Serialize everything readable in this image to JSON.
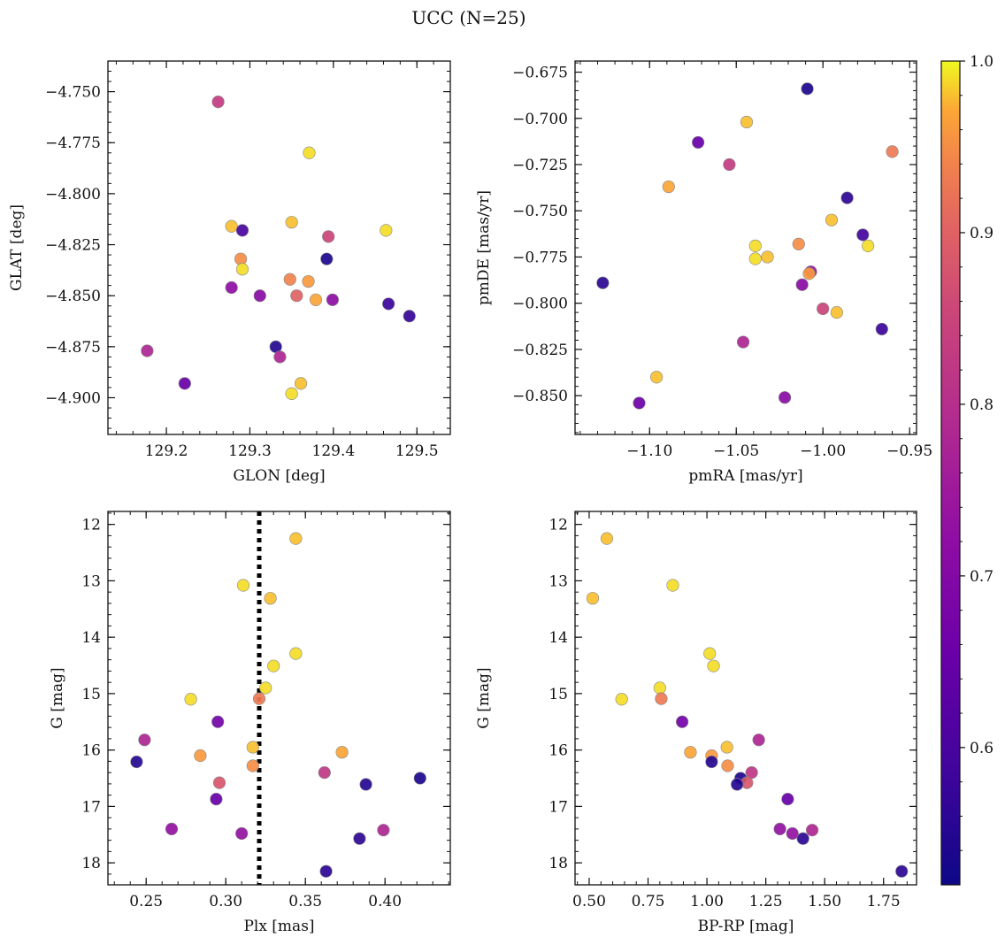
{
  "figure": {
    "title": "UCC (N=25)"
  },
  "colorbar": {
    "min": 0.52,
    "max": 1.0,
    "ticks": [
      0.6,
      0.7,
      0.8,
      0.9,
      1.0
    ],
    "tick_labels": [
      "0.6",
      "0.7",
      "0.8",
      "0.9",
      "1.0"
    ],
    "colormap": "plasma"
  },
  "chart_data": [
    {
      "type": "scatter",
      "xlabel": "GLON [deg]",
      "ylabel": "GLAT [deg]",
      "xlim": [
        129.13,
        129.54
      ],
      "ylim": [
        -4.918,
        -4.735
      ],
      "xticks": [
        129.2,
        129.3,
        129.4,
        129.5
      ],
      "xtick_labels": [
        "129.2",
        "129.3",
        "129.4",
        "129.5"
      ],
      "yticks": [
        -4.75,
        -4.775,
        -4.8,
        -4.825,
        -4.85,
        -4.875,
        -4.9
      ],
      "ytick_labels": [
        "−4.750",
        "−4.775",
        "−4.800",
        "−4.825",
        "−4.850",
        "−4.875",
        "−4.900"
      ],
      "points": [
        {
          "x": 129.262,
          "y": -4.755,
          "c": 0.83
        },
        {
          "x": 129.371,
          "y": -4.78,
          "c": 0.99
        },
        {
          "x": 129.278,
          "y": -4.816,
          "c": 0.98
        },
        {
          "x": 129.291,
          "y": -4.818,
          "c": 0.6
        },
        {
          "x": 129.35,
          "y": -4.814,
          "c": 0.98
        },
        {
          "x": 129.394,
          "y": -4.821,
          "c": 0.85
        },
        {
          "x": 129.463,
          "y": -4.818,
          "c": 0.99
        },
        {
          "x": 129.289,
          "y": -4.832,
          "c": 0.95
        },
        {
          "x": 129.291,
          "y": -4.837,
          "c": 0.99
        },
        {
          "x": 129.392,
          "y": -4.832,
          "c": 0.54
        },
        {
          "x": 129.348,
          "y": -4.842,
          "c": 0.94
        },
        {
          "x": 129.37,
          "y": -4.843,
          "c": 0.96
        },
        {
          "x": 129.278,
          "y": -4.846,
          "c": 0.72
        },
        {
          "x": 129.312,
          "y": -4.85,
          "c": 0.71
        },
        {
          "x": 129.356,
          "y": -4.85,
          "c": 0.9
        },
        {
          "x": 129.379,
          "y": -4.852,
          "c": 0.97
        },
        {
          "x": 129.399,
          "y": -4.852,
          "c": 0.72
        },
        {
          "x": 129.466,
          "y": -4.854,
          "c": 0.58
        },
        {
          "x": 129.491,
          "y": -4.86,
          "c": 0.57
        },
        {
          "x": 129.177,
          "y": -4.877,
          "c": 0.78
        },
        {
          "x": 129.331,
          "y": -4.875,
          "c": 0.55
        },
        {
          "x": 129.336,
          "y": -4.88,
          "c": 0.78
        },
        {
          "x": 129.222,
          "y": -4.893,
          "c": 0.65
        },
        {
          "x": 129.361,
          "y": -4.893,
          "c": 0.98
        },
        {
          "x": 129.35,
          "y": -4.898,
          "c": 0.99
        }
      ]
    },
    {
      "type": "scatter",
      "xlabel": "pmRA [mas/yr]",
      "ylabel": "pmDE [mas/yr]",
      "xlim": [
        -1.143,
        -0.946
      ],
      "ylim": [
        -0.871,
        -0.669
      ],
      "xticks": [
        -1.1,
        -1.05,
        -1.0,
        -0.95
      ],
      "xtick_labels": [
        "−1.10",
        "−1.05",
        "−1.00",
        "−0.95"
      ],
      "yticks": [
        -0.675,
        -0.7,
        -0.725,
        -0.75,
        -0.775,
        -0.8,
        -0.825,
        -0.85
      ],
      "ytick_labels": [
        "−0.675",
        "−0.700",
        "−0.725",
        "−0.750",
        "−0.775",
        "−0.800",
        "−0.825",
        "−0.850"
      ],
      "points": [
        {
          "x": -1.009,
          "y": -0.684,
          "c": 0.54
        },
        {
          "x": -1.044,
          "y": -0.702,
          "c": 0.98
        },
        {
          "x": -1.072,
          "y": -0.713,
          "c": 0.65
        },
        {
          "x": -1.054,
          "y": -0.725,
          "c": 0.83
        },
        {
          "x": -0.96,
          "y": -0.718,
          "c": 0.93
        },
        {
          "x": -1.089,
          "y": -0.737,
          "c": 0.97
        },
        {
          "x": -0.986,
          "y": -0.743,
          "c": 0.56
        },
        {
          "x": -0.995,
          "y": -0.755,
          "c": 0.98
        },
        {
          "x": -0.977,
          "y": -0.763,
          "c": 0.59
        },
        {
          "x": -0.974,
          "y": -0.769,
          "c": 0.99
        },
        {
          "x": -1.039,
          "y": -0.769,
          "c": 0.99
        },
        {
          "x": -1.014,
          "y": -0.768,
          "c": 0.95
        },
        {
          "x": -1.039,
          "y": -0.776,
          "c": 0.99
        },
        {
          "x": -1.032,
          "y": -0.775,
          "c": 0.98
        },
        {
          "x": -1.007,
          "y": -0.783,
          "c": 0.74
        },
        {
          "x": -1.008,
          "y": -0.784,
          "c": 0.96
        },
        {
          "x": -1.012,
          "y": -0.79,
          "c": 0.71
        },
        {
          "x": -1.127,
          "y": -0.789,
          "c": 0.56
        },
        {
          "x": -1.0,
          "y": -0.803,
          "c": 0.85
        },
        {
          "x": -0.992,
          "y": -0.805,
          "c": 0.98
        },
        {
          "x": -0.966,
          "y": -0.814,
          "c": 0.58
        },
        {
          "x": -1.046,
          "y": -0.821,
          "c": 0.78
        },
        {
          "x": -1.096,
          "y": -0.84,
          "c": 0.98
        },
        {
          "x": -1.022,
          "y": -0.851,
          "c": 0.71
        },
        {
          "x": -1.106,
          "y": -0.854,
          "c": 0.66
        }
      ]
    },
    {
      "type": "scatter",
      "xlabel": "Plx [mas]",
      "ylabel": "G [mag]",
      "xlim": [
        0.226,
        0.441
      ],
      "ylim": [
        18.39,
        11.77
      ],
      "y_inverted": true,
      "vline": 0.321,
      "xticks": [
        0.25,
        0.3,
        0.35,
        0.4
      ],
      "xtick_labels": [
        "0.25",
        "0.30",
        "0.35",
        "0.40"
      ],
      "yticks": [
        12,
        13,
        14,
        15,
        16,
        17,
        18
      ],
      "ytick_labels": [
        "12",
        "13",
        "14",
        "15",
        "16",
        "17",
        "18"
      ],
      "points": [
        {
          "x": 0.344,
          "y": 12.25,
          "c": 0.98
        },
        {
          "x": 0.311,
          "y": 13.08,
          "c": 0.99
        },
        {
          "x": 0.328,
          "y": 13.31,
          "c": 0.98
        },
        {
          "x": 0.344,
          "y": 14.29,
          "c": 0.99
        },
        {
          "x": 0.33,
          "y": 14.51,
          "c": 0.99
        },
        {
          "x": 0.325,
          "y": 14.9,
          "c": 0.99
        },
        {
          "x": 0.278,
          "y": 15.1,
          "c": 0.99
        },
        {
          "x": 0.321,
          "y": 15.09,
          "c": 0.93
        },
        {
          "x": 0.295,
          "y": 15.5,
          "c": 0.67
        },
        {
          "x": 0.249,
          "y": 15.82,
          "c": 0.78
        },
        {
          "x": 0.317,
          "y": 15.95,
          "c": 0.98
        },
        {
          "x": 0.373,
          "y": 16.04,
          "c": 0.97
        },
        {
          "x": 0.284,
          "y": 16.1,
          "c": 0.96
        },
        {
          "x": 0.244,
          "y": 16.21,
          "c": 0.55
        },
        {
          "x": 0.317,
          "y": 16.28,
          "c": 0.95
        },
        {
          "x": 0.362,
          "y": 16.4,
          "c": 0.82
        },
        {
          "x": 0.422,
          "y": 16.5,
          "c": 0.54
        },
        {
          "x": 0.296,
          "y": 16.58,
          "c": 0.88
        },
        {
          "x": 0.388,
          "y": 16.61,
          "c": 0.55
        },
        {
          "x": 0.294,
          "y": 16.87,
          "c": 0.65
        },
        {
          "x": 0.266,
          "y": 17.4,
          "c": 0.73
        },
        {
          "x": 0.399,
          "y": 17.42,
          "c": 0.78
        },
        {
          "x": 0.31,
          "y": 17.48,
          "c": 0.73
        },
        {
          "x": 0.384,
          "y": 17.57,
          "c": 0.56
        },
        {
          "x": 0.363,
          "y": 18.15,
          "c": 0.56
        }
      ]
    },
    {
      "type": "scatter",
      "xlabel": "BP-RP [mag]",
      "ylabel": "G [mag]",
      "xlim": [
        0.44,
        1.89
      ],
      "ylim": [
        18.39,
        11.77
      ],
      "y_inverted": true,
      "xticks": [
        0.5,
        0.75,
        1.0,
        1.25,
        1.5,
        1.75
      ],
      "xtick_labels": [
        "0.50",
        "0.75",
        "1.00",
        "1.25",
        "1.50",
        "1.75"
      ],
      "yticks": [
        12,
        13,
        14,
        15,
        16,
        17,
        18
      ],
      "ytick_labels": [
        "12",
        "13",
        "14",
        "15",
        "16",
        "17",
        "18"
      ],
      "points": [
        {
          "x": 0.575,
          "y": 12.25,
          "c": 0.98
        },
        {
          "x": 0.855,
          "y": 13.08,
          "c": 0.99
        },
        {
          "x": 0.515,
          "y": 13.31,
          "c": 0.98
        },
        {
          "x": 1.012,
          "y": 14.29,
          "c": 0.99
        },
        {
          "x": 1.028,
          "y": 14.51,
          "c": 0.99
        },
        {
          "x": 0.8,
          "y": 14.9,
          "c": 0.99
        },
        {
          "x": 0.638,
          "y": 15.1,
          "c": 0.99
        },
        {
          "x": 0.806,
          "y": 15.09,
          "c": 0.93
        },
        {
          "x": 0.895,
          "y": 15.5,
          "c": 0.67
        },
        {
          "x": 1.22,
          "y": 15.82,
          "c": 0.78
        },
        {
          "x": 1.085,
          "y": 15.95,
          "c": 0.98
        },
        {
          "x": 0.93,
          "y": 16.04,
          "c": 0.97
        },
        {
          "x": 1.02,
          "y": 16.1,
          "c": 0.96
        },
        {
          "x": 1.02,
          "y": 16.21,
          "c": 0.55
        },
        {
          "x": 1.088,
          "y": 16.28,
          "c": 0.95
        },
        {
          "x": 1.19,
          "y": 16.4,
          "c": 0.82
        },
        {
          "x": 1.143,
          "y": 16.5,
          "c": 0.54
        },
        {
          "x": 1.17,
          "y": 16.58,
          "c": 0.88
        },
        {
          "x": 1.128,
          "y": 16.61,
          "c": 0.55
        },
        {
          "x": 1.343,
          "y": 16.87,
          "c": 0.65
        },
        {
          "x": 1.31,
          "y": 17.4,
          "c": 0.73
        },
        {
          "x": 1.447,
          "y": 17.42,
          "c": 0.78
        },
        {
          "x": 1.363,
          "y": 17.48,
          "c": 0.73
        },
        {
          "x": 1.408,
          "y": 17.57,
          "c": 0.56
        },
        {
          "x": 1.827,
          "y": 18.15,
          "c": 0.56
        }
      ]
    }
  ]
}
